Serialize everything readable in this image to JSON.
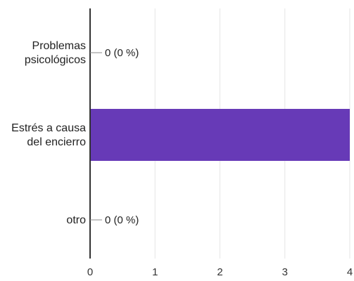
{
  "chart_data": {
    "type": "bar",
    "orientation": "horizontal",
    "categories": [
      [
        "Problemas",
        "psicológicos"
      ],
      [
        "Estrés a causa",
        "del encierro"
      ],
      [
        "otro"
      ]
    ],
    "values": [
      0,
      4,
      0
    ],
    "value_labels": [
      "0 (0 %)",
      "",
      "0 (0 %)"
    ],
    "xlim": [
      0,
      4
    ],
    "xticks": [
      "0",
      "1",
      "2",
      "3",
      "4"
    ],
    "grid": true,
    "title": "",
    "xlabel": "",
    "ylabel": "",
    "colors": {
      "bar": "#673ab7",
      "grid": "#e6e6e6",
      "axis": "#333333",
      "leader": "#888888"
    }
  }
}
